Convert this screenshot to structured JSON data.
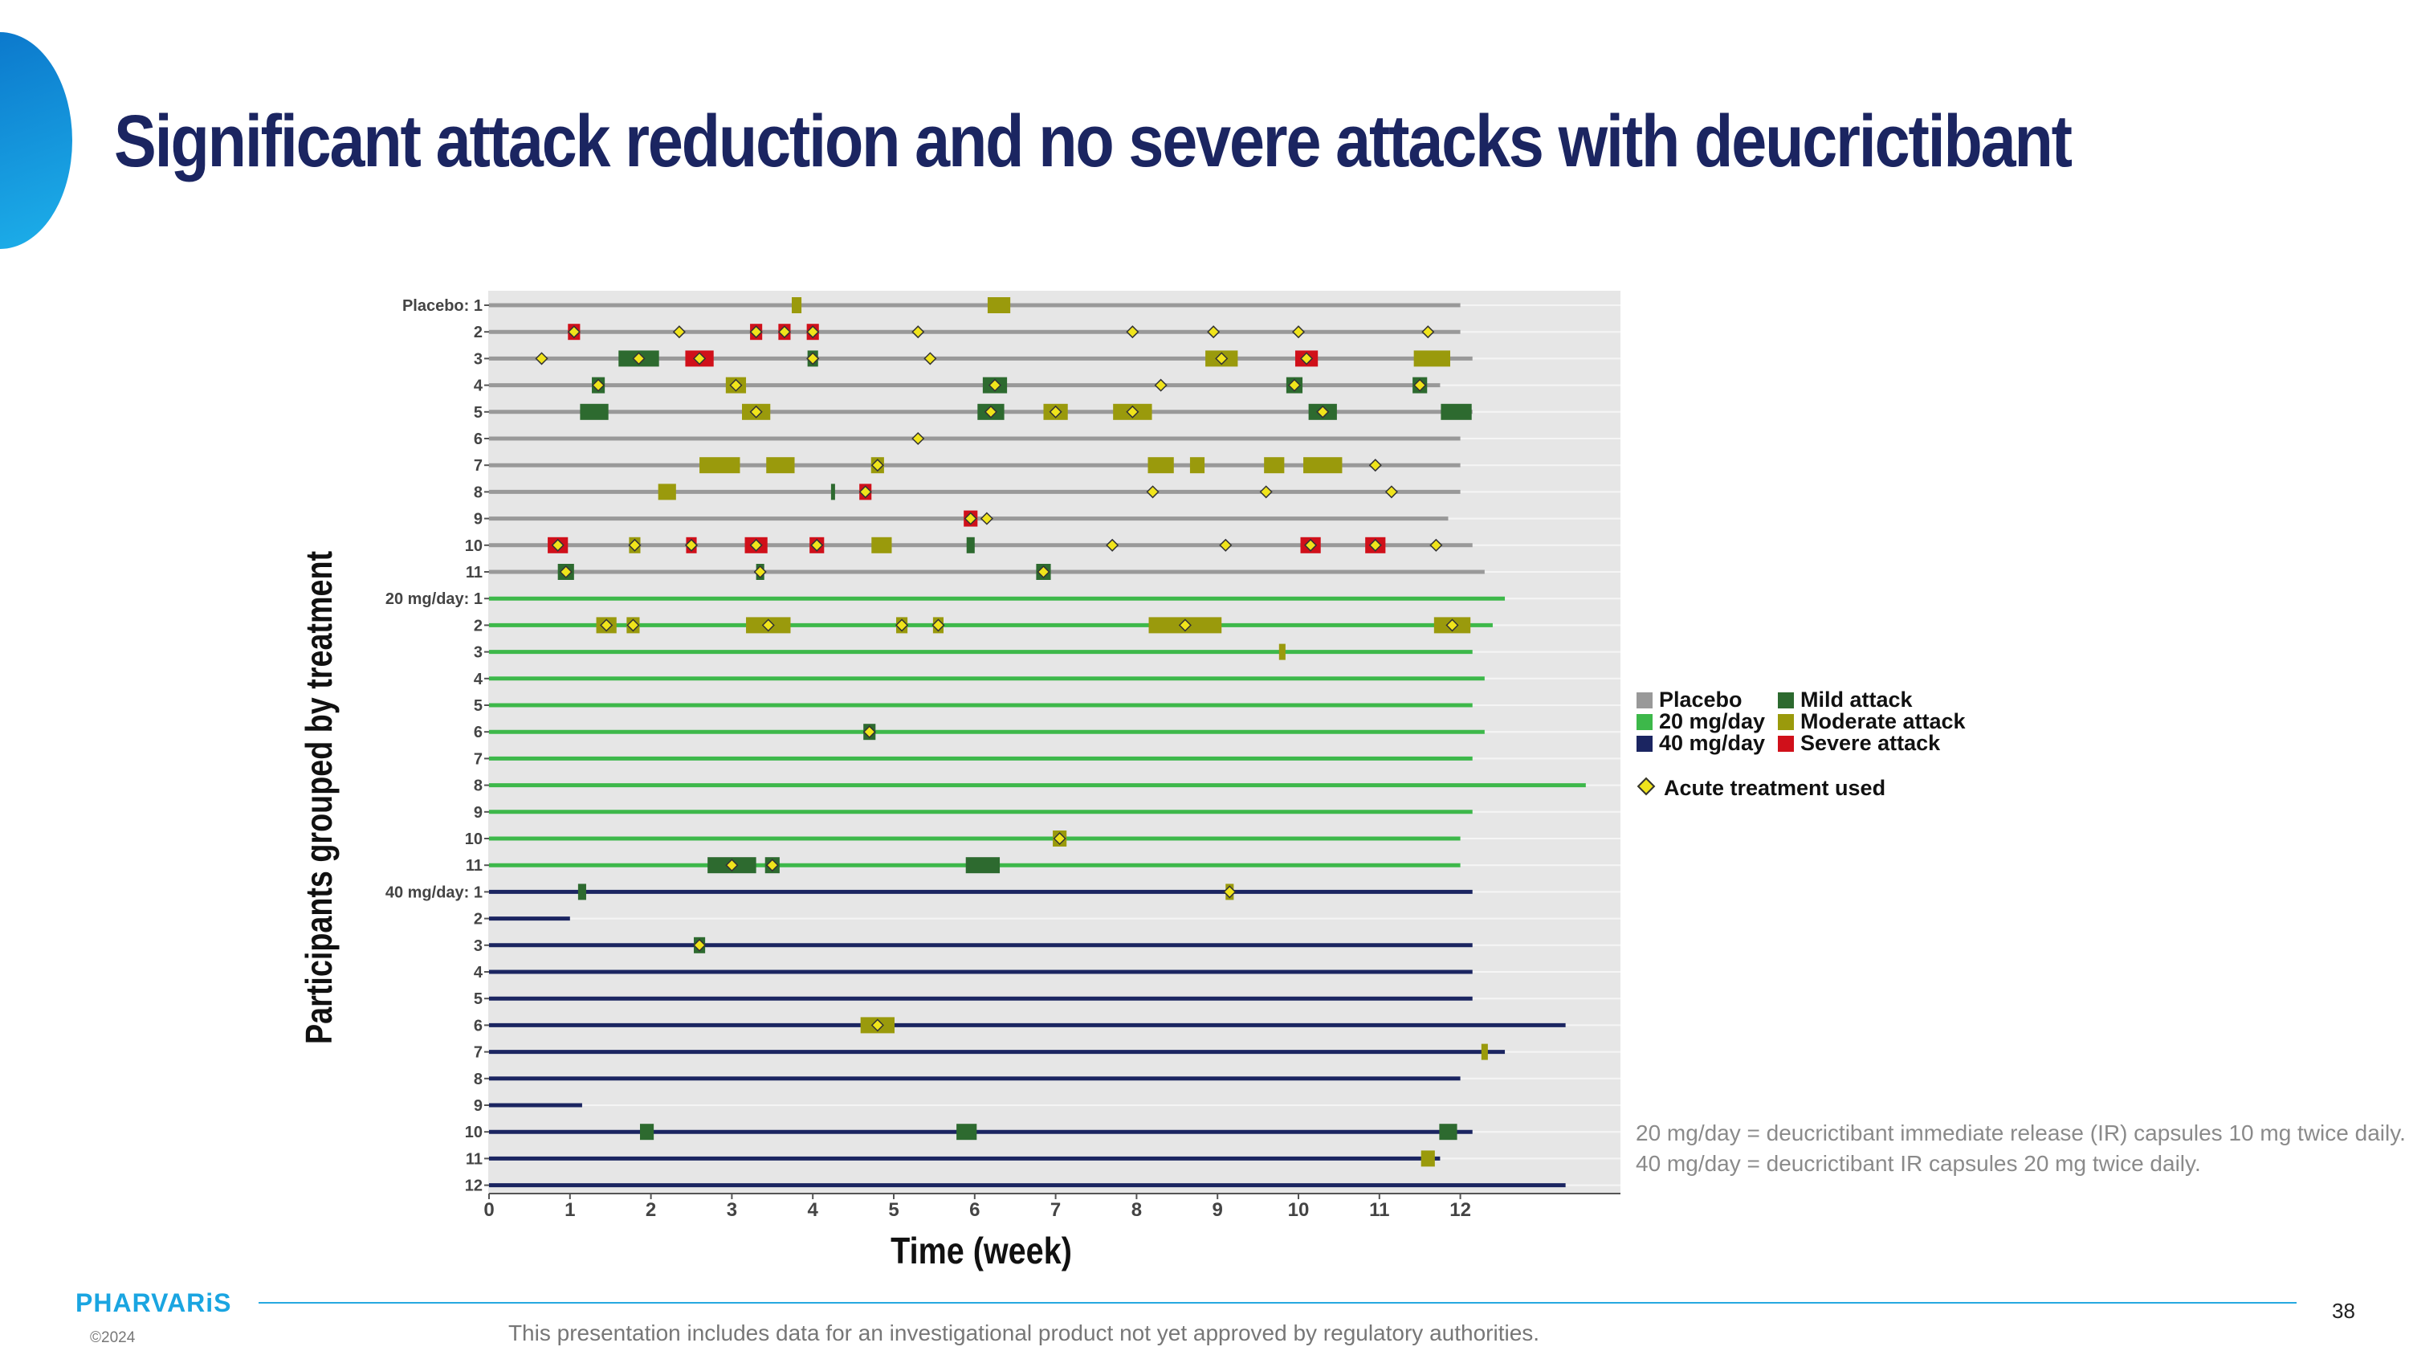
{
  "slide": {
    "title": "Significant attack reduction and no severe attacks with deucrictibant",
    "footnote_lines": [
      "20 mg/day = deucrictibant immediate release (IR) capsules 10 mg twice daily.",
      "40 mg/day = deucrictibant IR capsules 20 mg twice daily."
    ],
    "logo": "PHARVARiS",
    "copyright": "©2024",
    "page_number": "38",
    "disclaimer": "This presentation includes data for an investigational product not yet approved by regulatory authorities."
  },
  "chart_data": {
    "type": "swimmer",
    "xlabel": "Time (week)",
    "ylabel": "Participants grouped by treatment",
    "xlim": [
      0,
      14
    ],
    "xticks": [
      0,
      1,
      2,
      3,
      4,
      5,
      6,
      7,
      8,
      9,
      10,
      11,
      12
    ],
    "grid": true,
    "legend_position": "right",
    "legend": [
      {
        "label": "Placebo",
        "color": "#999999"
      },
      {
        "label": "Mild attack",
        "color": "#2d6a2f"
      },
      {
        "label": "20 mg/day",
        "color": "#3db84a"
      },
      {
        "label": "Moderate attack",
        "color": "#9a9a0c"
      },
      {
        "label": "40 mg/day",
        "color": "#1b2561"
      },
      {
        "label": "Severe attack",
        "color": "#d0101a"
      }
    ],
    "acute_label": "Acute treatment used",
    "colors": {
      "mild": "#2d6a2f",
      "moderate": "#9a9a0c",
      "severe": "#d0101a",
      "acute": "#f0e41b",
      "placebo": "#999999",
      "20mg": "#3db84a",
      "40mg": "#1b2561",
      "plot_bg": "#e6e6e6"
    },
    "groups": [
      {
        "name": "Placebo",
        "line_color": "#999999",
        "participants": [
          {
            "label": "1",
            "end": 12.0,
            "events": [
              {
                "s": "moderate",
                "x": 3.8,
                "w": 0.12
              },
              {
                "s": "moderate",
                "x": 6.3,
                "w": 0.28
              }
            ]
          },
          {
            "label": "2",
            "end": 12.0,
            "events": [
              {
                "s": "severe",
                "x": 1.05,
                "w": 0.15,
                "a": true
              },
              {
                "s": "none",
                "x": 2.35,
                "a": true
              },
              {
                "s": "severe",
                "x": 3.3,
                "w": 0.15,
                "a": true
              },
              {
                "s": "severe",
                "x": 3.65,
                "w": 0.15,
                "a": true
              },
              {
                "s": "severe",
                "x": 4.0,
                "w": 0.15,
                "a": true
              },
              {
                "s": "none",
                "x": 5.3,
                "a": true
              },
              {
                "s": "none",
                "x": 7.95,
                "a": true
              },
              {
                "s": "none",
                "x": 8.95,
                "a": true
              },
              {
                "s": "none",
                "x": 10.0,
                "a": true
              },
              {
                "s": "none",
                "x": 11.6,
                "a": true
              }
            ]
          },
          {
            "label": "3",
            "end": 12.15,
            "events": [
              {
                "s": "none",
                "x": 0.65,
                "a": true
              },
              {
                "s": "mild",
                "x": 1.85,
                "w": 0.5,
                "a": true
              },
              {
                "s": "severe",
                "x": 2.6,
                "w": 0.35,
                "a": true
              },
              {
                "s": "mild",
                "x": 4.0,
                "w": 0.13,
                "a": true
              },
              {
                "s": "none",
                "x": 5.45,
                "a": true
              },
              {
                "s": "moderate",
                "x": 9.05,
                "w": 0.4,
                "a": true
              },
              {
                "s": "severe",
                "x": 10.1,
                "w": 0.28,
                "a": true
              },
              {
                "s": "moderate",
                "x": 11.65,
                "w": 0.45
              }
            ]
          },
          {
            "label": "4",
            "end": 11.75,
            "events": [
              {
                "s": "mild",
                "x": 1.35,
                "w": 0.16,
                "a": true
              },
              {
                "s": "moderate",
                "x": 3.05,
                "w": 0.25,
                "a": true
              },
              {
                "s": "mild",
                "x": 6.25,
                "w": 0.3,
                "a": true
              },
              {
                "s": "none",
                "x": 8.3,
                "a": true
              },
              {
                "s": "mild",
                "x": 9.95,
                "w": 0.2,
                "a": true
              },
              {
                "s": "mild",
                "x": 11.5,
                "w": 0.18,
                "a": true
              }
            ]
          },
          {
            "label": "5",
            "end": 12.15,
            "events": [
              {
                "s": "mild",
                "x": 1.3,
                "w": 0.35
              },
              {
                "s": "moderate",
                "x": 3.3,
                "w": 0.35,
                "a": true
              },
              {
                "s": "mild",
                "x": 6.2,
                "w": 0.33,
                "a": true
              },
              {
                "s": "moderate",
                "x": 7.0,
                "w": 0.3,
                "a": true
              },
              {
                "s": "moderate",
                "x": 7.95,
                "w": 0.48,
                "a": true
              },
              {
                "s": "mild",
                "x": 10.3,
                "w": 0.35,
                "a": true
              },
              {
                "s": "mild",
                "x": 11.95,
                "w": 0.38
              }
            ]
          },
          {
            "label": "6",
            "end": 12.0,
            "events": [
              {
                "s": "none",
                "x": 5.3,
                "a": true
              }
            ]
          },
          {
            "label": "7",
            "end": 12.0,
            "events": [
              {
                "s": "moderate",
                "x": 2.85,
                "w": 0.5
              },
              {
                "s": "moderate",
                "x": 3.6,
                "w": 0.35
              },
              {
                "s": "moderate",
                "x": 4.8,
                "w": 0.16,
                "a": true
              },
              {
                "s": "moderate",
                "x": 8.3,
                "w": 0.32
              },
              {
                "s": "moderate",
                "x": 8.75,
                "w": 0.18
              },
              {
                "s": "moderate",
                "x": 9.7,
                "w": 0.25
              },
              {
                "s": "moderate",
                "x": 10.3,
                "w": 0.48
              },
              {
                "s": "none",
                "x": 10.95,
                "a": true
              }
            ]
          },
          {
            "label": "8",
            "end": 12.0,
            "events": [
              {
                "s": "moderate",
                "x": 2.2,
                "w": 0.22
              },
              {
                "s": "mild",
                "x": 4.25,
                "w": 0.04
              },
              {
                "s": "severe",
                "x": 4.65,
                "w": 0.15,
                "a": true
              },
              {
                "s": "none",
                "x": 8.2,
                "a": true
              },
              {
                "s": "none",
                "x": 9.6,
                "a": true
              },
              {
                "s": "none",
                "x": 11.15,
                "a": true
              }
            ]
          },
          {
            "label": "9",
            "end": 11.85,
            "events": [
              {
                "s": "severe",
                "x": 5.95,
                "w": 0.17,
                "a": true
              },
              {
                "s": "none",
                "x": 6.15,
                "a": true
              }
            ]
          },
          {
            "label": "10",
            "end": 12.15,
            "events": [
              {
                "s": "severe",
                "x": 0.85,
                "w": 0.25,
                "a": true
              },
              {
                "s": "moderate",
                "x": 1.8,
                "w": 0.14,
                "a": true
              },
              {
                "s": "severe",
                "x": 2.5,
                "w": 0.13,
                "a": true
              },
              {
                "s": "severe",
                "x": 3.3,
                "w": 0.28,
                "a": true
              },
              {
                "s": "severe",
                "x": 4.05,
                "w": 0.18,
                "a": true
              },
              {
                "s": "moderate",
                "x": 4.85,
                "w": 0.25
              },
              {
                "s": "mild",
                "x": 5.95,
                "w": 0.1
              },
              {
                "s": "none",
                "x": 7.7,
                "a": true
              },
              {
                "s": "none",
                "x": 9.1,
                "a": true
              },
              {
                "s": "severe",
                "x": 10.15,
                "w": 0.25,
                "a": true
              },
              {
                "s": "severe",
                "x": 10.95,
                "w": 0.25,
                "a": true
              },
              {
                "s": "none",
                "x": 11.7,
                "a": true
              }
            ]
          },
          {
            "label": "11",
            "end": 12.3,
            "events": [
              {
                "s": "mild",
                "x": 0.95,
                "w": 0.2,
                "a": true
              },
              {
                "s": "mild",
                "x": 3.35,
                "w": 0.1,
                "a": true
              },
              {
                "s": "mild",
                "x": 6.85,
                "w": 0.18,
                "a": true
              }
            ]
          }
        ]
      },
      {
        "name": "20 mg/day",
        "line_color": "#3db84a",
        "participants": [
          {
            "label": "1",
            "end": 12.55,
            "events": []
          },
          {
            "label": "2",
            "end": 12.4,
            "events": [
              {
                "s": "moderate",
                "x": 1.45,
                "w": 0.25,
                "a": true
              },
              {
                "s": "moderate",
                "x": 1.78,
                "w": 0.16,
                "a": true
              },
              {
                "s": "moderate",
                "x": 3.45,
                "w": 0.55,
                "a": true
              },
              {
                "s": "moderate",
                "x": 5.1,
                "w": 0.14,
                "a": true
              },
              {
                "s": "moderate",
                "x": 5.55,
                "w": 0.13,
                "a": true
              },
              {
                "s": "moderate",
                "x": 8.6,
                "w": 0.9,
                "a": true
              },
              {
                "s": "moderate",
                "x": 11.9,
                "w": 0.45,
                "a": true
              }
            ]
          },
          {
            "label": "3",
            "end": 12.15,
            "events": [
              {
                "s": "moderate",
                "x": 9.8,
                "w": 0.08
              }
            ]
          },
          {
            "label": "4",
            "end": 12.3,
            "events": []
          },
          {
            "label": "5",
            "end": 12.15,
            "events": []
          },
          {
            "label": "6",
            "end": 12.3,
            "events": [
              {
                "s": "mild",
                "x": 4.7,
                "w": 0.15,
                "a": true
              }
            ]
          },
          {
            "label": "7",
            "end": 12.15,
            "events": []
          },
          {
            "label": "8",
            "end": 13.55,
            "events": []
          },
          {
            "label": "9",
            "end": 12.15,
            "events": []
          },
          {
            "label": "10",
            "end": 12.0,
            "events": [
              {
                "s": "moderate",
                "x": 7.05,
                "w": 0.17,
                "a": true
              }
            ]
          },
          {
            "label": "11",
            "end": 12.0,
            "events": [
              {
                "s": "mild",
                "x": 3.0,
                "w": 0.6,
                "a": true
              },
              {
                "s": "mild",
                "x": 3.5,
                "w": 0.18,
                "a": true
              },
              {
                "s": "mild",
                "x": 6.1,
                "w": 0.42
              }
            ]
          }
        ]
      },
      {
        "name": "40 mg/day",
        "line_color": "#1b2561",
        "participants": [
          {
            "label": "1",
            "end": 12.15,
            "events": [
              {
                "s": "mild",
                "x": 1.15,
                "w": 0.1
              },
              {
                "s": "moderate",
                "x": 9.15,
                "w": 0.1,
                "a": true
              }
            ]
          },
          {
            "label": "2",
            "end": 1.0,
            "events": []
          },
          {
            "label": "3",
            "end": 12.15,
            "events": [
              {
                "s": "mild",
                "x": 2.6,
                "w": 0.14,
                "a": true
              }
            ]
          },
          {
            "label": "4",
            "end": 12.15,
            "events": []
          },
          {
            "label": "5",
            "end": 12.15,
            "events": []
          },
          {
            "label": "6",
            "end": 13.3,
            "events": [
              {
                "s": "moderate",
                "x": 4.8,
                "w": 0.42,
                "a": true
              }
            ]
          },
          {
            "label": "7",
            "end": 12.55,
            "events": [
              {
                "s": "moderate",
                "x": 12.3,
                "w": 0.08
              }
            ]
          },
          {
            "label": "8",
            "end": 12.0,
            "events": []
          },
          {
            "label": "9",
            "end": 1.15,
            "events": []
          },
          {
            "label": "10",
            "end": 12.15,
            "events": [
              {
                "s": "mild",
                "x": 1.95,
                "w": 0.17
              },
              {
                "s": "mild",
                "x": 5.9,
                "w": 0.25
              },
              {
                "s": "mild",
                "x": 11.85,
                "w": 0.22
              }
            ]
          },
          {
            "label": "11",
            "end": 11.75,
            "events": [
              {
                "s": "moderate",
                "x": 11.6,
                "w": 0.17
              }
            ]
          },
          {
            "label": "12",
            "end": 13.3,
            "events": []
          }
        ]
      }
    ]
  }
}
